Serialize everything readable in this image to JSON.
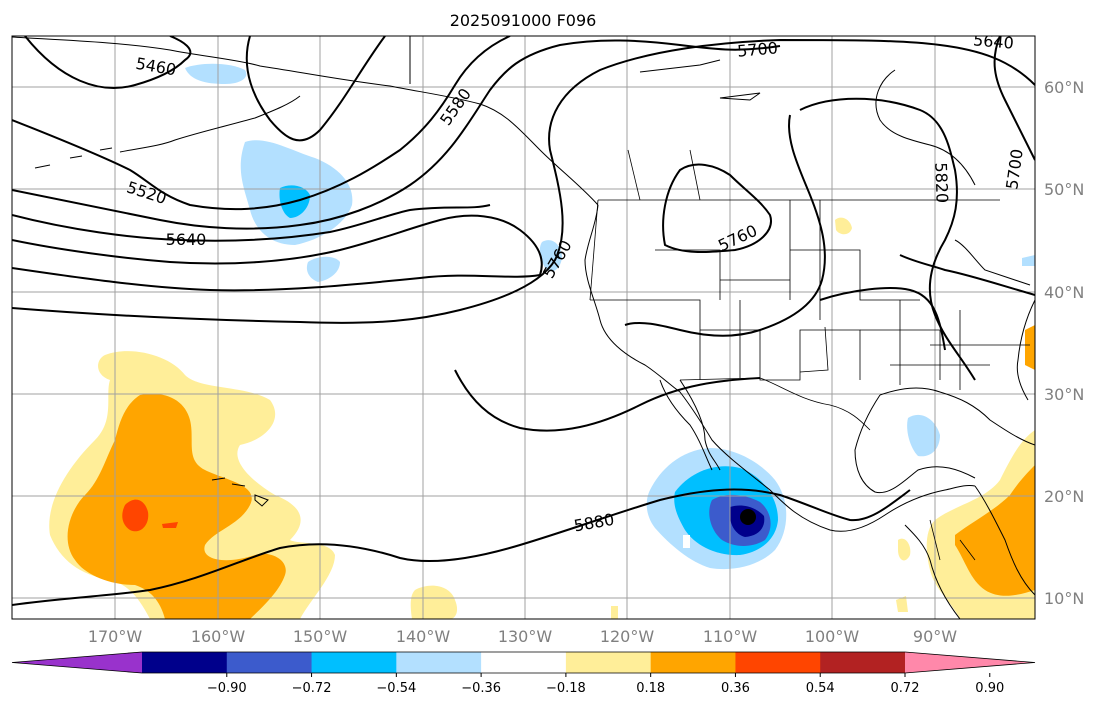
{
  "title": "2025091000 F096",
  "map": {
    "lon_labels": [
      "170°W",
      "160°W",
      "150°W",
      "140°W",
      "130°W",
      "120°W",
      "110°W",
      "100°W",
      "90°W"
    ],
    "lat_labels": [
      "60°N",
      "50°N",
      "40°N",
      "30°N",
      "20°N",
      "10°N"
    ],
    "contour_labels": [
      "5460",
      "5520",
      "5640",
      "5580",
      "5700",
      "5640",
      "5760",
      "5760",
      "5820",
      "5700",
      "5880"
    ],
    "colors": {
      "land_line": "#000000",
      "grid": "#a0a0a0",
      "neg_light": "#b3e0ff",
      "neg_mid": "#00bfff",
      "neg_dark": "#3c5bcc",
      "neg_darkest": "#00008b",
      "pos_light": "#ffee99",
      "pos_mid": "#ffa500",
      "pos_strong": "#ff4500"
    }
  },
  "colorbar": {
    "ticks": [
      "−0.90",
      "−0.72",
      "−0.54",
      "−0.36",
      "−0.18",
      "0.18",
      "0.36",
      "0.54",
      "0.72",
      "0.90"
    ],
    "colors": [
      "#9932cc",
      "#00008b",
      "#3c5bcc",
      "#00bfff",
      "#b3e0ff",
      "#ffffff",
      "#ffee99",
      "#ffa500",
      "#ff4500",
      "#b22222",
      "#ff88aa"
    ]
  }
}
